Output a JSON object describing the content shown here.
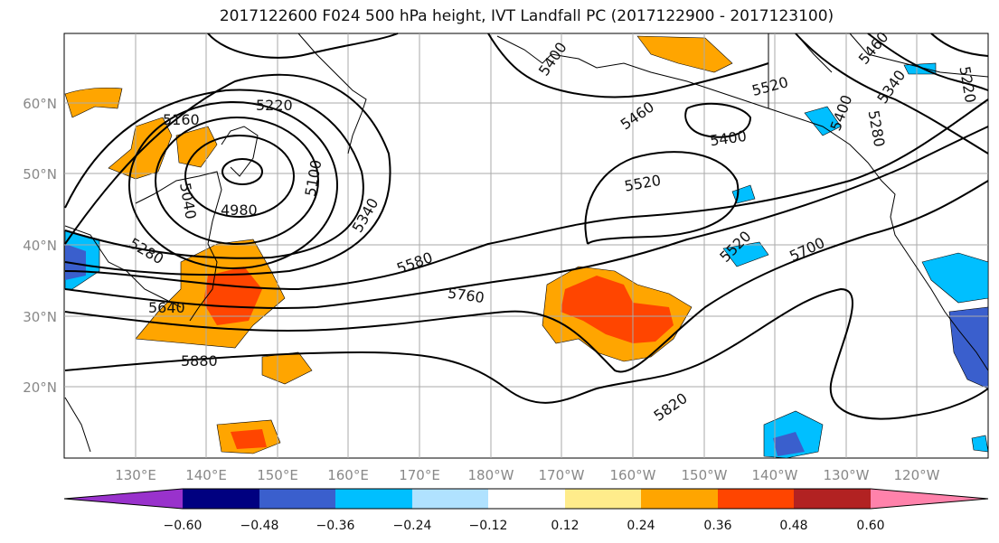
{
  "title": "2017122600 F024 500 hPa height, IVT Landfall PC (2017122900 - 2017123100)",
  "lat_ticks": [
    "60°N",
    "50°N",
    "40°N",
    "30°N",
    "20°N"
  ],
  "lon_ticks": [
    "130°E",
    "140°E",
    "150°E",
    "160°E",
    "170°E",
    "180°W",
    "170°W",
    "160°W",
    "150°W",
    "140°W",
    "130°W",
    "120°W"
  ],
  "contour_labels": [
    "5160",
    "5220",
    "5040",
    "4980",
    "5100",
    "5340",
    "5280",
    "5640",
    "5580",
    "5760",
    "5880",
    "5400",
    "5460",
    "5520",
    "5400",
    "5520",
    "5700",
    "5820",
    "5520",
    "5340",
    "5280",
    "5460",
    "5400",
    "5220"
  ],
  "colorbar": {
    "ticks": [
      "−0.60",
      "−0.48",
      "−0.36",
      "−0.24",
      "−0.12",
      "0.12",
      "0.24",
      "0.36",
      "0.48",
      "0.60"
    ],
    "colors": [
      "#9932CC",
      "#000080",
      "#3A5FCD",
      "#00BFFF",
      "#B0E2FF",
      "#FFFFFF",
      "#FFEC8B",
      "#FFA500",
      "#FF4500",
      "#B22222",
      "#FF82AB"
    ]
  },
  "colors": {
    "positive_mid": "#FFA500",
    "positive_high": "#FF4500",
    "negative_mid": "#00BFFF",
    "contour": "#000000",
    "grid": "#aaaaaa"
  }
}
